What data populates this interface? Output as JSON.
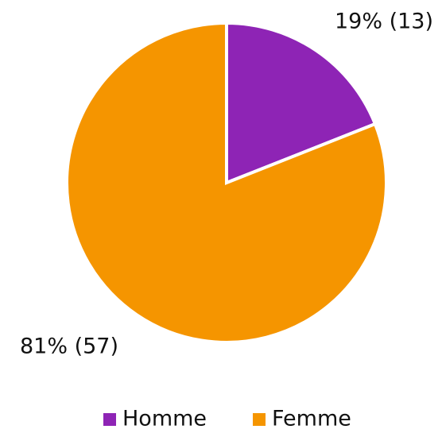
{
  "chart_data": {
    "type": "pie",
    "categories": [
      "Homme",
      "Femme"
    ],
    "values": [
      19,
      81
    ],
    "value_labels": [
      "19% (13)",
      "81% (57)"
    ],
    "colors": [
      "#8e24b5",
      "#f59500"
    ],
    "legend": "bottom"
  }
}
